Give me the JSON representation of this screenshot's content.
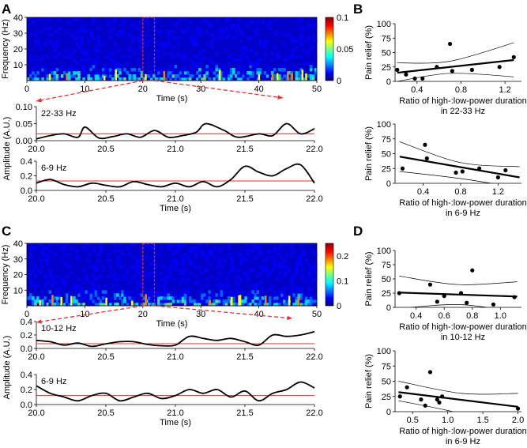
{
  "colors": {
    "jet": [
      "#00007f",
      "#0000ff",
      "#007fff",
      "#00ffff",
      "#7fff7f",
      "#ffff00",
      "#ff7f00",
      "#ff0000",
      "#7f0000"
    ],
    "threshold": "#e53030",
    "zoom": "#e53030",
    "trace": "#000000"
  },
  "labels": {
    "A": "A",
    "B": "B",
    "C": "C",
    "D": "D"
  },
  "chart_data": [
    {
      "id": "A_spec",
      "type": "heatmap",
      "ylabel": "Frequency (Hz)",
      "xlabel": "Time (s)",
      "xlim": [
        0,
        50
      ],
      "ylim": [
        0,
        40
      ],
      "xticks": [
        "0",
        "10",
        "20",
        "30",
        "40",
        "50"
      ],
      "yticks": [
        "10",
        "20",
        "30",
        "40"
      ],
      "colorbar": {
        "ticks": [
          "0",
          "0.05",
          "0.1"
        ],
        "range": [
          0,
          0.1
        ]
      },
      "zoom_window": [
        20,
        22
      ]
    },
    {
      "id": "A_b1",
      "type": "line",
      "annotation": "22-33 Hz",
      "xlim": [
        20,
        22
      ],
      "ylim": [
        0,
        0.1
      ],
      "yticks": [
        "0.00",
        "0.05",
        "0.10"
      ],
      "xticks": [
        "20.0",
        "20.5",
        "21.0",
        "21.5",
        "22.0"
      ],
      "threshold": 0.02,
      "x": [
        20.0,
        20.1,
        20.2,
        20.3,
        20.35,
        20.45,
        20.55,
        20.65,
        20.75,
        20.85,
        20.95,
        21.05,
        21.15,
        21.22,
        21.35,
        21.45,
        21.6,
        21.7,
        21.8,
        21.9,
        22.0
      ],
      "y": [
        0.005,
        0.015,
        0.02,
        0.01,
        0.04,
        0.008,
        0.012,
        0.02,
        0.01,
        0.03,
        0.01,
        0.015,
        0.025,
        0.05,
        0.03,
        0.01,
        0.02,
        0.015,
        0.05,
        0.02,
        0.035
      ]
    },
    {
      "id": "A_b2",
      "type": "line",
      "annotation": "6-9 Hz",
      "xlim": [
        20,
        22
      ],
      "ylim": [
        0,
        0.4
      ],
      "yticks": [
        "0.0",
        "0.2",
        "0.4"
      ],
      "xticks": [
        "20.0",
        "20.5",
        "21.0",
        "21.5",
        "22.0"
      ],
      "xlabel": "Time (s)",
      "threshold": 0.13,
      "shared_ylabel": "Amplitude (A.U.)",
      "x": [
        20.0,
        20.1,
        20.2,
        20.3,
        20.4,
        20.5,
        20.6,
        20.7,
        20.8,
        20.9,
        21.0,
        21.1,
        21.2,
        21.3,
        21.4,
        21.5,
        21.6,
        21.7,
        21.8,
        21.9,
        22.0
      ],
      "y": [
        0.1,
        0.15,
        0.08,
        0.05,
        0.1,
        0.07,
        0.05,
        0.12,
        0.08,
        0.05,
        0.1,
        0.05,
        0.12,
        0.05,
        0.15,
        0.33,
        0.25,
        0.2,
        0.3,
        0.35,
        0.1
      ]
    },
    {
      "id": "B1",
      "type": "scatter",
      "xlabel": "Ratio of high-:low-power duration",
      "xlabel2": "in 22-33 Hz",
      "ylabel": "Pain relief (%)",
      "xlim": [
        0.2,
        1.35
      ],
      "ylim": [
        0,
        100
      ],
      "xticks": [
        "0.4",
        "0.8",
        "1.2"
      ],
      "yticks": [
        "0",
        "25",
        "50",
        "75",
        "100"
      ],
      "points": [
        [
          0.22,
          20
        ],
        [
          0.3,
          12
        ],
        [
          0.38,
          5
        ],
        [
          0.45,
          5
        ],
        [
          0.58,
          25
        ],
        [
          0.7,
          65
        ],
        [
          0.72,
          18
        ],
        [
          0.9,
          20
        ],
        [
          1.15,
          25
        ],
        [
          1.28,
          42
        ]
      ],
      "fit": [
        [
          0.22,
          15
        ],
        [
          1.28,
          37
        ]
      ],
      "ci_upper": [
        [
          0.22,
          32
        ],
        [
          0.7,
          35
        ],
        [
          1.28,
          67
        ]
      ],
      "ci_lower": [
        [
          0.22,
          0
        ],
        [
          0.7,
          14
        ],
        [
          1.28,
          8
        ]
      ]
    },
    {
      "id": "B2",
      "type": "scatter",
      "xlabel": "Ratio of high-:low-power duration",
      "xlabel2": "in 6-9 Hz",
      "ylabel": "Pain relief (%)",
      "xlim": [
        0.1,
        1.45
      ],
      "ylim": [
        0,
        100
      ],
      "xticks": [
        "0.4",
        "0.8",
        "1.2"
      ],
      "yticks": [
        "0",
        "25",
        "50",
        "75",
        "100"
      ],
      "points": [
        [
          0.18,
          25
        ],
        [
          0.42,
          65
        ],
        [
          0.44,
          42
        ],
        [
          0.75,
          18
        ],
        [
          0.82,
          20
        ],
        [
          1.0,
          25
        ],
        [
          1.2,
          10
        ],
        [
          1.28,
          22
        ]
      ],
      "fit": [
        [
          0.15,
          45
        ],
        [
          1.43,
          10
        ]
      ],
      "ci_upper": [
        [
          0.15,
          70
        ],
        [
          0.8,
          35
        ],
        [
          1.43,
          28
        ]
      ],
      "ci_lower": [
        [
          0.15,
          20
        ],
        [
          0.8,
          8
        ],
        [
          1.43,
          -8
        ]
      ]
    },
    {
      "id": "C_spec",
      "type": "heatmap",
      "ylabel": "Frequency (Hz)",
      "xlabel": "Time (s)",
      "xlim": [
        0,
        50
      ],
      "ylim": [
        0,
        40
      ],
      "xticks": [
        "0",
        "10",
        "20",
        "30",
        "40",
        "50"
      ],
      "yticks": [
        "10",
        "20",
        "30",
        "40"
      ],
      "colorbar": {
        "ticks": [
          "0",
          "0.1",
          "0.2"
        ],
        "range": [
          0,
          0.25
        ]
      },
      "zoom_window": [
        20,
        22
      ]
    },
    {
      "id": "C_b1",
      "type": "line",
      "annotation": "10-12 Hz",
      "xlim": [
        20,
        22
      ],
      "ylim": [
        0,
        0.4
      ],
      "yticks": [
        "0.0",
        "0.2",
        "0.4"
      ],
      "xticks": [
        "20.0",
        "20.5",
        "21.0",
        "21.5",
        "22.0"
      ],
      "threshold": 0.07,
      "x": [
        20.0,
        20.1,
        20.2,
        20.3,
        20.4,
        20.5,
        20.6,
        20.7,
        20.8,
        20.9,
        21.0,
        21.1,
        21.2,
        21.3,
        21.4,
        21.5,
        21.6,
        21.7,
        21.8,
        21.9,
        22.0
      ],
      "y": [
        0.12,
        0.1,
        0.05,
        0.08,
        0.03,
        0.07,
        0.1,
        0.1,
        0.06,
        0.04,
        0.05,
        0.18,
        0.15,
        0.12,
        0.15,
        0.1,
        0.05,
        0.2,
        0.18,
        0.2,
        0.25
      ]
    },
    {
      "id": "C_b2",
      "type": "line",
      "annotation": "6-9 Hz",
      "xlim": [
        20,
        22
      ],
      "ylim": [
        0,
        0.4
      ],
      "yticks": [
        "0.0",
        "0.2",
        "0.4"
      ],
      "xticks": [
        "20.0",
        "20.5",
        "21.0",
        "21.5",
        "22.0"
      ],
      "xlabel": "Time (s)",
      "threshold": 0.12,
      "shared_ylabel": "Amplitude (A.U.)",
      "x": [
        20.0,
        20.1,
        20.2,
        20.3,
        20.4,
        20.5,
        20.6,
        20.7,
        20.8,
        20.9,
        21.0,
        21.1,
        21.2,
        21.3,
        21.4,
        21.5,
        21.6,
        21.7,
        21.8,
        21.9,
        22.0
      ],
      "y": [
        0.25,
        0.15,
        0.1,
        0.05,
        0.12,
        0.15,
        0.05,
        0.1,
        0.15,
        0.08,
        0.12,
        0.2,
        0.15,
        0.2,
        0.1,
        0.18,
        0.05,
        0.15,
        0.2,
        0.3,
        0.22
      ]
    },
    {
      "id": "D1",
      "type": "scatter",
      "xlabel": "Ratio of high-:low-power duration",
      "xlabel2": "in 10-12 Hz",
      "ylabel": "Pain relief (%)",
      "xlim": [
        0.25,
        1.15
      ],
      "ylim": [
        0,
        100
      ],
      "xticks": [
        "0.4",
        "0.6",
        "0.8",
        "1.0"
      ],
      "yticks": [
        "0",
        "25",
        "50",
        "75",
        "100"
      ],
      "points": [
        [
          0.28,
          25
        ],
        [
          0.5,
          40
        ],
        [
          0.55,
          10
        ],
        [
          0.6,
          20
        ],
        [
          0.72,
          25
        ],
        [
          0.76,
          8
        ],
        [
          0.8,
          65
        ],
        [
          0.95,
          5
        ],
        [
          1.1,
          18
        ]
      ],
      "fit": [
        [
          0.28,
          26
        ],
        [
          1.12,
          19
        ]
      ],
      "ci_upper": [
        [
          0.28,
          55
        ],
        [
          0.7,
          40
        ],
        [
          1.12,
          45
        ]
      ],
      "ci_lower": [
        [
          0.28,
          -2
        ],
        [
          0.7,
          5
        ],
        [
          1.12,
          -8
        ]
      ]
    },
    {
      "id": "D2",
      "type": "scatter",
      "xlabel": "Ratio of high-:low-power duration",
      "xlabel2": "in 6-9 Hz",
      "ylabel": "Pain relief (%)",
      "xlim": [
        0.25,
        2.05
      ],
      "ylim": [
        0,
        100
      ],
      "xticks": [
        "0.5",
        "1.0",
        "1.5",
        "2.0"
      ],
      "yticks": [
        "0",
        "25",
        "50",
        "75",
        "100"
      ],
      "points": [
        [
          0.32,
          25
        ],
        [
          0.42,
          40
        ],
        [
          0.62,
          20
        ],
        [
          0.68,
          10
        ],
        [
          0.75,
          65
        ],
        [
          0.85,
          20
        ],
        [
          0.88,
          15
        ],
        [
          0.92,
          25
        ],
        [
          2.0,
          5
        ]
      ],
      "fit": [
        [
          0.3,
          32
        ],
        [
          2.0,
          8
        ]
      ],
      "ci_upper": [
        [
          0.3,
          50
        ],
        [
          1.2,
          30
        ],
        [
          2.0,
          30
        ]
      ],
      "ci_lower": [
        [
          0.3,
          18
        ],
        [
          1.0,
          2
        ],
        [
          1.4,
          -10
        ]
      ]
    }
  ]
}
